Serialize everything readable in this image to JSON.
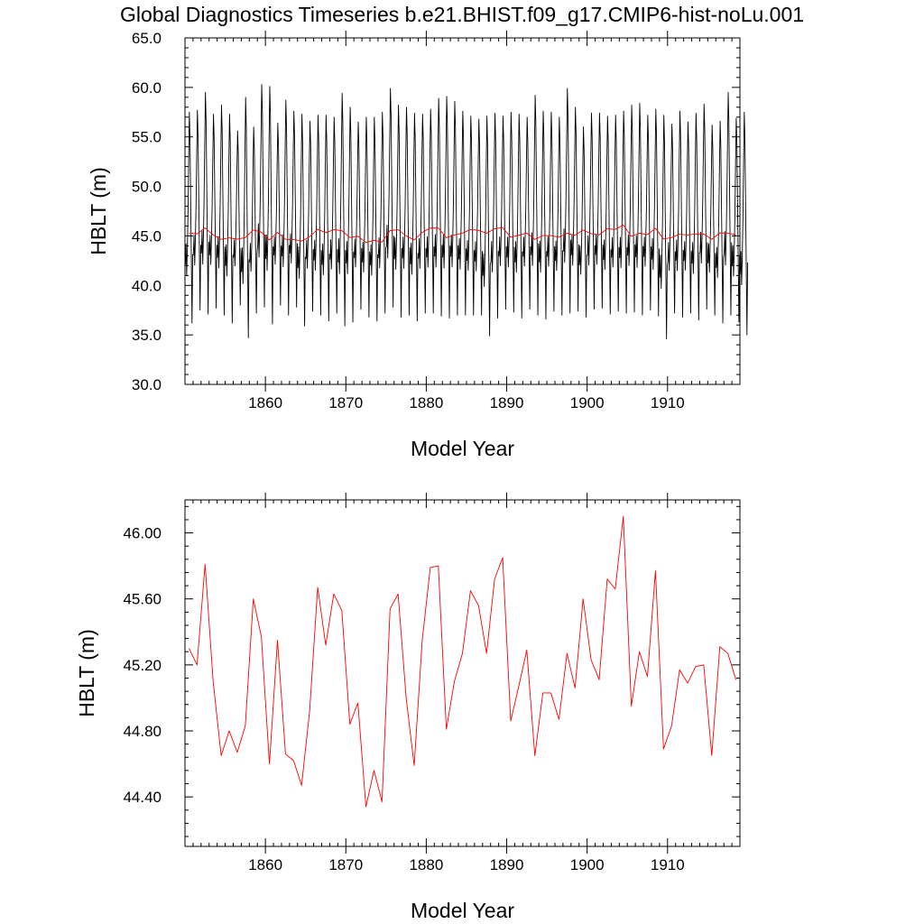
{
  "title": "Global Diagnostics Timeseries b.e21.BHIST.f09_g17.CMIP6-hist-noLu.001",
  "colors": {
    "monthly": "#000000",
    "annual": "#ff0000",
    "axes": "#000000"
  },
  "chart_data": [
    {
      "type": "line",
      "title": "Global Diagnostics Timeseries b.e21.BHIST.f09_g17.CMIP6-hist-noLu.001",
      "xlabel": "Model Year",
      "ylabel": "HBLT (m)",
      "xlim": [
        1850,
        1919
      ],
      "ylim": [
        30.0,
        65.0
      ],
      "xticks": [
        1860,
        1870,
        1880,
        1890,
        1900,
        1910
      ],
      "xtick_labels": [
        "1860",
        "1870",
        "1880",
        "1890",
        "1900",
        "1910"
      ],
      "yticks": [
        30.0,
        35.0,
        40.0,
        45.0,
        50.0,
        55.0,
        60.0,
        65.0
      ],
      "ytick_labels": [
        "30.0",
        "35.0",
        "40.0",
        "45.0",
        "50.0",
        "55.0",
        "60.0",
        "65.0"
      ],
      "grid": false,
      "series": [
        {
          "color": "#000000",
          "style": "monthly seasonal cycle",
          "annual_max": [
            57.5,
            57.7,
            59.5,
            57.3,
            58.2,
            57.3,
            55.6,
            59.0,
            56.0,
            60.3,
            60.1,
            56.4,
            58.7,
            57.6,
            57.3,
            56.6,
            57.2,
            57.2,
            57.0,
            59.4,
            58.0,
            56.5,
            57.0,
            57.0,
            57.5,
            59.9,
            58.2,
            58.0,
            57.4,
            57.3,
            57.8,
            58.9,
            59.1,
            58.6,
            57.6,
            57.1,
            56.8,
            57.1,
            57.4,
            57.1,
            57.5,
            57.3,
            57.0,
            59.2,
            57.6,
            57.5,
            57.0,
            59.9,
            58.0,
            56.0,
            57.4,
            57.4,
            57.1,
            57.2,
            57.6,
            58.2,
            58.4,
            57.2,
            57.8,
            57.2,
            56.3,
            57.6,
            56.5,
            57.4,
            58.3,
            56.2,
            56.6,
            59.5,
            56.9,
            57.5
          ],
          "annual_min": [
            36.2,
            37.5,
            37.1,
            37.7,
            37.0,
            36.2,
            38.0,
            34.7,
            37.2,
            37.8,
            36.1,
            38.0,
            37.0,
            37.8,
            35.9,
            37.4,
            37.0,
            36.4,
            37.2,
            35.9,
            36.3,
            37.6,
            36.8,
            36.4,
            37.2,
            37.8,
            36.8,
            37.0,
            36.4,
            37.2,
            37.2,
            36.9,
            36.7,
            37.0,
            37.0,
            37.0,
            37.0,
            34.9,
            36.7,
            37.6,
            37.3,
            36.7,
            37.6,
            37.0,
            36.6,
            37.4,
            37.0,
            37.2,
            37.4,
            36.8,
            37.6,
            37.7,
            37.1,
            37.4,
            37.2,
            37.3,
            37.0,
            37.5,
            36.9,
            34.6,
            37.2,
            36.8,
            37.2,
            36.5,
            37.6,
            37.0,
            36.2,
            37.0,
            36.3,
            35.0
          ]
        },
        {
          "color": "#ff0000",
          "style": "annual mean",
          "x": [
            1850.5,
            1851.5,
            1852.5,
            1853.5,
            1854.5,
            1855.5,
            1856.5,
            1857.5,
            1858.5,
            1859.5,
            1860.5,
            1861.5,
            1862.5,
            1863.5,
            1864.5,
            1865.5,
            1866.5,
            1867.5,
            1868.5,
            1869.5,
            1870.5,
            1871.5,
            1872.5,
            1873.5,
            1874.5,
            1875.5,
            1876.5,
            1877.5,
            1878.5,
            1879.5,
            1880.5,
            1881.5,
            1882.5,
            1883.5,
            1884.5,
            1885.5,
            1886.5,
            1887.5,
            1888.5,
            1889.5,
            1890.5,
            1891.5,
            1892.5,
            1893.5,
            1894.5,
            1895.5,
            1896.5,
            1897.5,
            1898.5,
            1899.5,
            1900.5,
            1901.5,
            1902.5,
            1903.5,
            1904.5,
            1905.5,
            1906.5,
            1907.5,
            1908.5,
            1909.5,
            1910.5,
            1911.5,
            1912.5,
            1913.5,
            1914.5,
            1915.5,
            1916.5,
            1917.5,
            1918.5
          ],
          "values": [
            45.3,
            45.2,
            45.81,
            45.1,
            44.65,
            44.8,
            44.67,
            44.83,
            45.6,
            45.37,
            44.6,
            45.35,
            44.66,
            44.62,
            44.47,
            44.92,
            45.67,
            45.32,
            45.63,
            45.53,
            44.84,
            44.97,
            44.34,
            44.56,
            44.37,
            45.54,
            45.63,
            45.0,
            44.59,
            45.35,
            45.79,
            45.8,
            44.81,
            45.1,
            45.27,
            45.65,
            45.56,
            45.27,
            45.72,
            45.85,
            44.86,
            45.07,
            45.29,
            44.65,
            45.03,
            45.03,
            44.87,
            45.27,
            45.06,
            45.6,
            45.23,
            45.11,
            45.72,
            45.66,
            46.1,
            44.95,
            45.28,
            45.13,
            45.77,
            44.69,
            44.83,
            45.17,
            45.09,
            45.19,
            45.2,
            44.65,
            45.31,
            45.27,
            45.11
          ]
        }
      ]
    },
    {
      "type": "line",
      "xlabel": "Model Year",
      "ylabel": "HBLT (m)",
      "xlim": [
        1850,
        1919
      ],
      "ylim": [
        44.1,
        46.2
      ],
      "xticks": [
        1860,
        1870,
        1880,
        1890,
        1900,
        1910
      ],
      "xtick_labels": [
        "1860",
        "1870",
        "1880",
        "1890",
        "1900",
        "1910"
      ],
      "yticks": [
        44.4,
        44.8,
        45.2,
        45.6,
        46.0
      ],
      "ytick_labels": [
        "44.40",
        "44.80",
        "45.20",
        "45.60",
        "46.00"
      ],
      "grid": false,
      "series": [
        {
          "color": "#ff0000",
          "x": [
            1850.5,
            1851.5,
            1852.5,
            1853.5,
            1854.5,
            1855.5,
            1856.5,
            1857.5,
            1858.5,
            1859.5,
            1860.5,
            1861.5,
            1862.5,
            1863.5,
            1864.5,
            1865.5,
            1866.5,
            1867.5,
            1868.5,
            1869.5,
            1870.5,
            1871.5,
            1872.5,
            1873.5,
            1874.5,
            1875.5,
            1876.5,
            1877.5,
            1878.5,
            1879.5,
            1880.5,
            1881.5,
            1882.5,
            1883.5,
            1884.5,
            1885.5,
            1886.5,
            1887.5,
            1888.5,
            1889.5,
            1890.5,
            1891.5,
            1892.5,
            1893.5,
            1894.5,
            1895.5,
            1896.5,
            1897.5,
            1898.5,
            1899.5,
            1900.5,
            1901.5,
            1902.5,
            1903.5,
            1904.5,
            1905.5,
            1906.5,
            1907.5,
            1908.5,
            1909.5,
            1910.5,
            1911.5,
            1912.5,
            1913.5,
            1914.5,
            1915.5,
            1916.5,
            1917.5,
            1918.5
          ],
          "values": [
            45.3,
            45.2,
            45.81,
            45.1,
            44.65,
            44.8,
            44.67,
            44.83,
            45.6,
            45.37,
            44.6,
            45.35,
            44.66,
            44.62,
            44.47,
            44.92,
            45.67,
            45.32,
            45.63,
            45.53,
            44.84,
            44.97,
            44.34,
            44.56,
            44.37,
            45.54,
            45.63,
            45.0,
            44.59,
            45.35,
            45.79,
            45.8,
            44.81,
            45.1,
            45.27,
            45.65,
            45.56,
            45.27,
            45.72,
            45.85,
            44.86,
            45.07,
            45.29,
            44.65,
            45.03,
            45.03,
            44.87,
            45.27,
            45.06,
            45.6,
            45.23,
            45.11,
            45.72,
            45.66,
            46.1,
            44.95,
            45.28,
            45.13,
            45.77,
            44.69,
            44.83,
            45.17,
            45.09,
            45.19,
            45.2,
            44.65,
            45.31,
            45.27,
            45.11
          ]
        }
      ]
    }
  ]
}
